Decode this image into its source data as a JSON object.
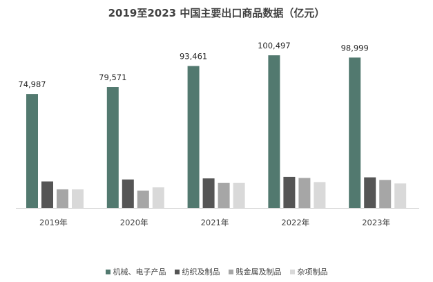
{
  "chart_data": {
    "type": "bar",
    "title": "2019至2023 中国主要出口商品数据（亿元）",
    "categories": [
      "2019年",
      "2020年",
      "2021年",
      "2022年",
      "2023年"
    ],
    "series": [
      {
        "name": "机械、电子产品",
        "values": [
          74987,
          79571,
          93461,
          100497,
          98999
        ],
        "color": "#52796f",
        "show_labels": true
      },
      {
        "name": "纺织及制品",
        "values": [
          17500,
          18800,
          19500,
          20500,
          20200
        ],
        "color": "#555555",
        "show_labels": false
      },
      {
        "name": "贱金属及制品",
        "values": [
          12300,
          11500,
          16500,
          19800,
          18500
        ],
        "color": "#a6a6a6",
        "show_labels": false
      },
      {
        "name": "杂项制品",
        "values": [
          12300,
          13600,
          16500,
          17100,
          16200
        ],
        "color": "#d9d9d9",
        "show_labels": false
      }
    ],
    "ylim": [
      0,
      100497
    ],
    "grid": false,
    "legend_position": "bottom"
  }
}
